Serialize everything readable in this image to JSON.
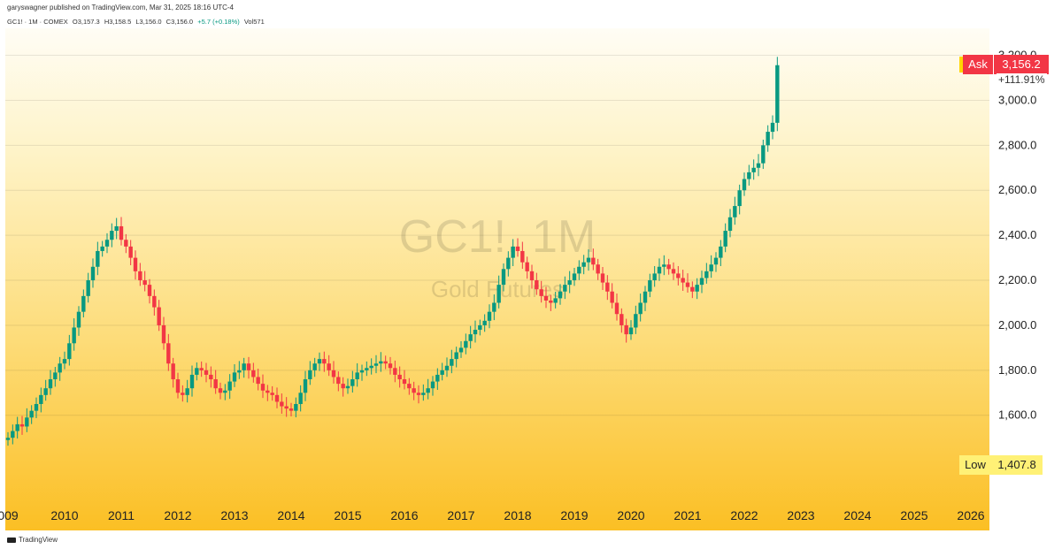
{
  "header": {
    "publisher": "garyswagner published on TradingView.com, Mar 31, 2025 18:16 UTC-4",
    "symbol": "GC1! · 1M · COMEX",
    "open": "O3,157.3",
    "high": "H3,158.5",
    "low": "L3,156.0",
    "close": "C3,156.0",
    "change": "+5.7 (+0.18%)",
    "volume": "Vol571"
  },
  "watermark": {
    "symbol": "GC1!, 1M",
    "name": "Gold Futures"
  },
  "footer": {
    "brand": "TradingView"
  },
  "price_axis": {
    "ticks": [
      "1,600.0",
      "1,800.0",
      "2,000.0",
      "2,200.0",
      "2,400.0",
      "2,600.0",
      "2,800.0",
      "3,000.0",
      "3,200.0"
    ],
    "ask_label": "Ask",
    "ask_value": "3,156.2",
    "change_pct": "+111.91%",
    "low_label": "Low",
    "low_value": "1,407.8"
  },
  "colors": {
    "up": "#089981",
    "down": "#f23645",
    "ask_bg": "#f23645",
    "low_bg": "#fff176"
  },
  "chart_data": {
    "type": "candlestick",
    "title": "GC1!, 1M",
    "subtitle": "Gold Futures",
    "x_ticks": [
      "009",
      "2010",
      "2011",
      "2012",
      "2013",
      "2014",
      "2015",
      "2016",
      "2017",
      "2018",
      "2019",
      "2020",
      "2021",
      "2022",
      "2023",
      "2024",
      "2025",
      "2026"
    ],
    "y_range": [
      1375,
      3210
    ],
    "y_scale": "linear",
    "grid": "horizontal",
    "start": "2009-01",
    "end": "2025-03",
    "close": [
      1500,
      1530,
      1560,
      1550,
      1590,
      1620,
      1650,
      1690,
      1720,
      1760,
      1790,
      1830,
      1850,
      1920,
      1990,
      2060,
      2130,
      2200,
      2260,
      2330,
      2350,
      2380,
      2420,
      2440,
      2380,
      2350,
      2300,
      2240,
      2200,
      2180,
      2130,
      2080,
      2000,
      1920,
      1830,
      1760,
      1700,
      1690,
      1720,
      1780,
      1810,
      1800,
      1780,
      1760,
      1720,
      1700,
      1710,
      1750,
      1790,
      1800,
      1830,
      1800,
      1770,
      1740,
      1710,
      1700,
      1690,
      1660,
      1640,
      1630,
      1620,
      1650,
      1700,
      1760,
      1800,
      1830,
      1850,
      1830,
      1800,
      1770,
      1740,
      1720,
      1730,
      1760,
      1790,
      1800,
      1810,
      1820,
      1830,
      1840,
      1830,
      1810,
      1780,
      1760,
      1740,
      1720,
      1700,
      1690,
      1700,
      1720,
      1750,
      1780,
      1800,
      1820,
      1850,
      1880,
      1900,
      1930,
      1960,
      1980,
      2000,
      2020,
      2060,
      2100,
      2180,
      2250,
      2300,
      2350,
      2330,
      2280,
      2240,
      2200,
      2160,
      2130,
      2110,
      2100,
      2120,
      2150,
      2180,
      2200,
      2230,
      2260,
      2280,
      2300,
      2270,
      2230,
      2190,
      2150,
      2100,
      2050,
      2000,
      1960,
      1990,
      2050,
      2100,
      2150,
      2200,
      2230,
      2260,
      2270,
      2250,
      2230,
      2210,
      2190,
      2170,
      2150,
      2180,
      2210,
      2240,
      2270,
      2300,
      2350,
      2420,
      2480,
      2530,
      2600,
      2650,
      2680,
      2700,
      2720,
      2800,
      2860,
      2900,
      3156
    ]
  }
}
